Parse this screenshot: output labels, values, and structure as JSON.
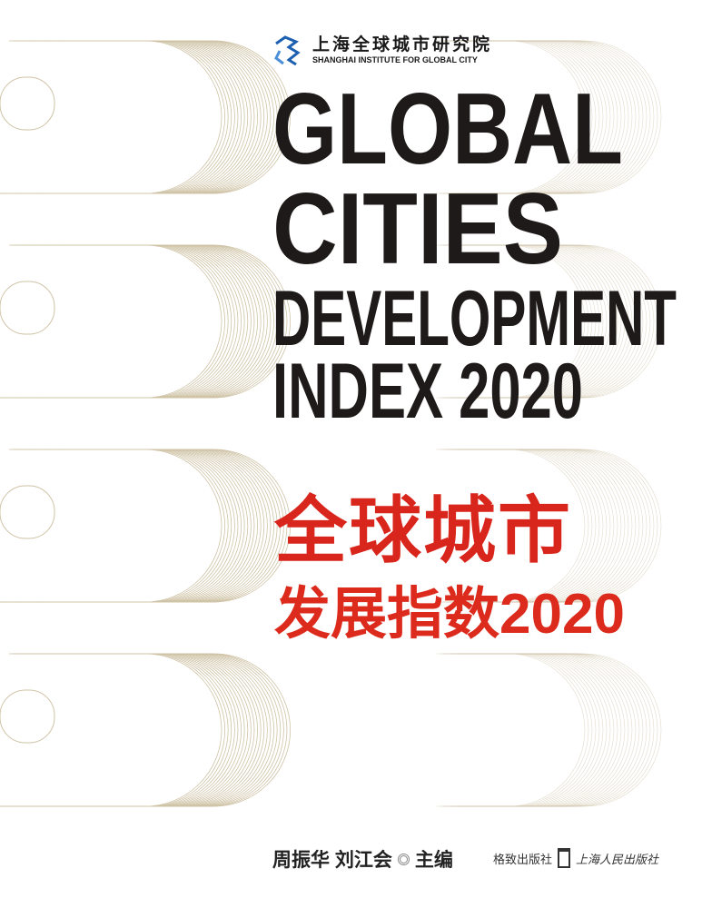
{
  "institute": {
    "name_cn": "上海全球城市研究院",
    "name_en": "SHANGHAI INSTITUTE FOR GLOBAL CITY",
    "logo_color": "#1d5fb0"
  },
  "title_en": [
    "GLOBAL",
    "CITIES",
    "DEVELOPMENT",
    "INDEX 2020"
  ],
  "title_cn": {
    "line1": "全球城市",
    "line2": "发展指数2020",
    "color": "#d9261c"
  },
  "editors": {
    "names": "周振华 刘江会",
    "role": "主编"
  },
  "publishers": {
    "first": "格致出版社",
    "second": "上海人民出版社"
  },
  "colors": {
    "line_art": "#cfc3a6",
    "title": "#1e1a19"
  }
}
